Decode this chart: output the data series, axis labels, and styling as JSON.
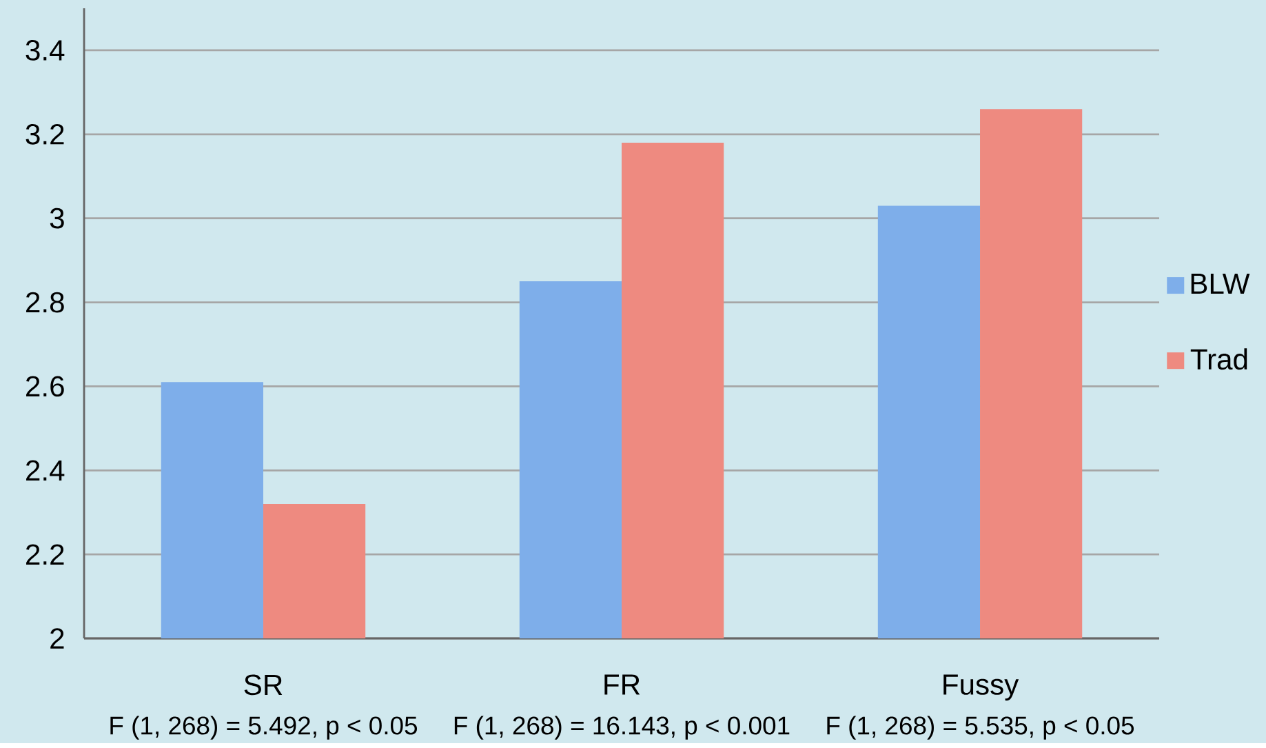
{
  "chart_data": {
    "type": "bar",
    "categories": [
      "SR",
      "FR",
      "Fussy"
    ],
    "series": [
      {
        "name": "BLW",
        "color": "#7eaeea",
        "values": [
          2.61,
          2.85,
          3.03
        ]
      },
      {
        "name": "Trad",
        "color": "#ee8a80",
        "values": [
          2.32,
          3.18,
          3.26
        ]
      }
    ],
    "ylim": [
      2,
      3.5
    ],
    "yticks": [
      2,
      2.2,
      2.4,
      2.6,
      2.8,
      3,
      3.2,
      3.4
    ],
    "grid": "y",
    "legend": "right",
    "annotations": [
      "F (1, 268) = 5.492, p < 0.05",
      "F (1, 268) = 16.143, p < 0.001",
      "F (1, 268) = 5.535, p < 0.05"
    ]
  }
}
